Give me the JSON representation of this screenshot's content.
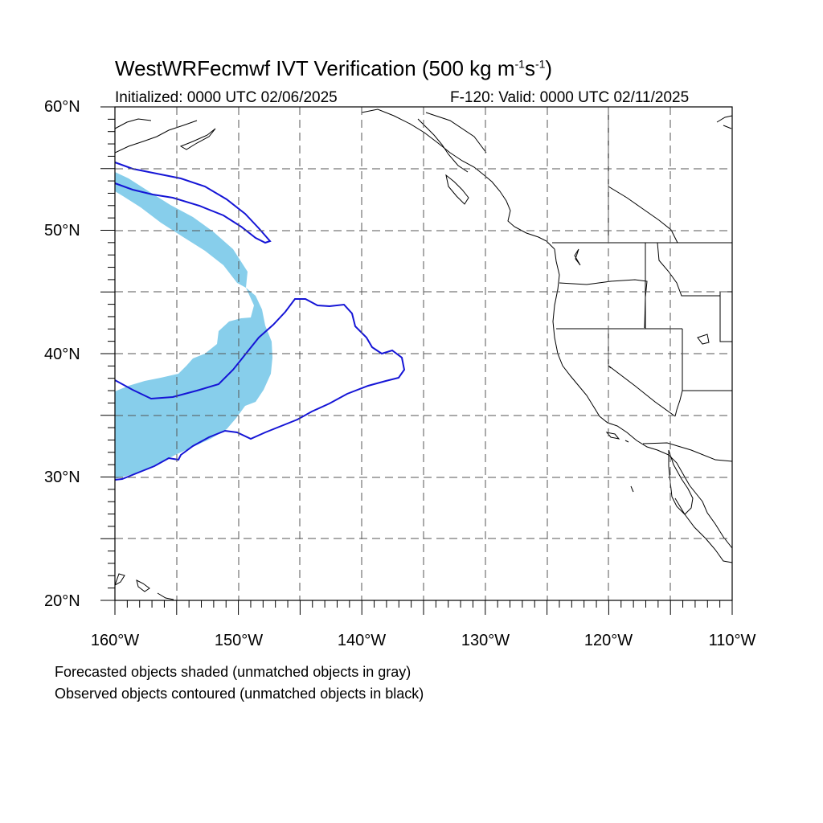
{
  "title": {
    "main": "WestWRFecmwf IVT Verification (500 kg m",
    "sup1": "-1",
    "mid": "s",
    "sup2": "-1",
    "end": ")"
  },
  "subtitle_left": "Initialized: 0000 UTC 02/06/2025",
  "subtitle_right": "F-120: Valid: 0000 UTC 02/11/2025",
  "lat_labels": [
    "60°N",
    "50°N",
    "40°N",
    "30°N",
    "20°N"
  ],
  "lon_labels": [
    "160°W",
    "150°W",
    "140°W",
    "130°W",
    "120°W",
    "110°W"
  ],
  "notes": [
    "Forecasted objects shaded (unmatched objects in gray)",
    "Observed objects contoured (unmatched objects in black)"
  ],
  "map": {
    "extent": {
      "lon": [
        -160,
        -110
      ],
      "lat": [
        20,
        60
      ]
    },
    "graticule_step_deg": 5,
    "colors": {
      "forecast_fill": "#87ceeb",
      "observed_contour": "#1515d6",
      "coast": "#000000",
      "grid": "#555555"
    }
  }
}
